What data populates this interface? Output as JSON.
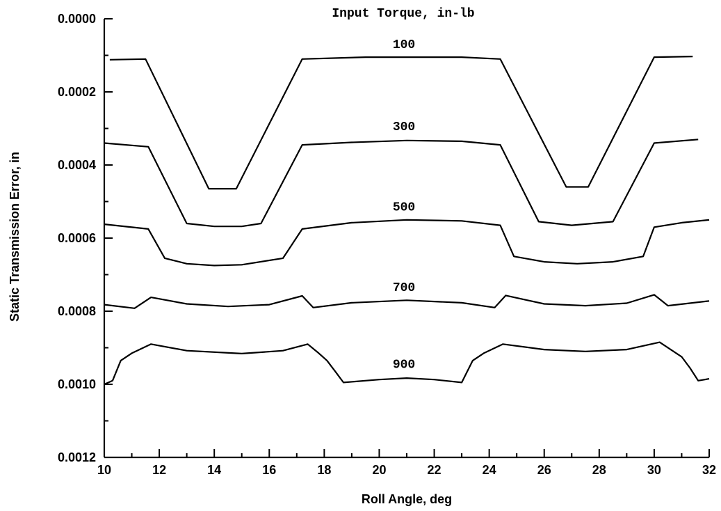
{
  "chart_data": {
    "type": "line",
    "title": "Input Torque, in-lb",
    "xlabel": "Roll Angle, deg",
    "ylabel": "Static Transmission Error, in",
    "xlim": [
      10,
      32
    ],
    "ylim": [
      0.0012,
      0.0
    ],
    "y_inverted": true,
    "x_major_ticks": [
      "10",
      "12",
      "14",
      "16",
      "18",
      "20",
      "22",
      "24",
      "26",
      "28",
      "30",
      "32"
    ],
    "y_major_ticks": [
      "0.0000",
      "0.0002",
      "0.0004",
      "0.0006",
      "0.0008",
      "0.0010",
      "0.0012"
    ],
    "grid": false,
    "series": [
      {
        "name": "100",
        "x": [
          10.2,
          11.5,
          13.8,
          14.2,
          14.8,
          17.2,
          19.5,
          21.0,
          23.0,
          24.4,
          26.8,
          27.2,
          27.6,
          30.0,
          31.4
        ],
        "y": [
          0.000112,
          0.00011,
          0.000465,
          0.000465,
          0.000465,
          0.00011,
          0.000105,
          0.000105,
          0.000105,
          0.00011,
          0.00046,
          0.00046,
          0.00046,
          0.000105,
          0.000103
        ]
      },
      {
        "name": "300",
        "x": [
          10.0,
          11.6,
          13.0,
          14.0,
          15.0,
          15.7,
          17.2,
          19.0,
          21.0,
          23.0,
          24.4,
          25.8,
          27.0,
          28.5,
          30.0,
          31.6
        ],
        "y": [
          0.00034,
          0.00035,
          0.00056,
          0.000568,
          0.000568,
          0.00056,
          0.000345,
          0.000338,
          0.000333,
          0.000335,
          0.000345,
          0.000555,
          0.000565,
          0.000555,
          0.00034,
          0.00033
        ]
      },
      {
        "name": "500",
        "x": [
          10.0,
          11.6,
          12.2,
          13.0,
          14.0,
          15.0,
          16.5,
          17.2,
          19.0,
          21.0,
          23.0,
          24.4,
          24.9,
          26.0,
          27.2,
          28.5,
          29.6,
          30.0,
          31.0,
          32.0
        ],
        "y": [
          0.000562,
          0.000575,
          0.000655,
          0.00067,
          0.000675,
          0.000673,
          0.000655,
          0.000575,
          0.000558,
          0.00055,
          0.000553,
          0.000565,
          0.00065,
          0.000665,
          0.00067,
          0.000665,
          0.00065,
          0.00057,
          0.000558,
          0.00055
        ]
      },
      {
        "name": "700",
        "x": [
          10.0,
          11.1,
          11.7,
          13.0,
          14.5,
          16.0,
          17.2,
          17.6,
          19.0,
          21.0,
          23.0,
          24.2,
          24.6,
          26.0,
          27.5,
          29.0,
          30.0,
          30.5,
          32.0
        ],
        "y": [
          0.000782,
          0.000792,
          0.000762,
          0.00078,
          0.000787,
          0.000782,
          0.000758,
          0.00079,
          0.000777,
          0.00077,
          0.000777,
          0.00079,
          0.000757,
          0.00078,
          0.000785,
          0.000778,
          0.000755,
          0.000785,
          0.000772
        ]
      },
      {
        "name": "900",
        "x": [
          10.0,
          10.3,
          10.6,
          11.0,
          11.7,
          13.0,
          15.0,
          16.5,
          17.4,
          17.8,
          18.1,
          18.4,
          18.7,
          20.0,
          21.0,
          22.0,
          23.0,
          23.4,
          23.8,
          24.5,
          26.0,
          27.5,
          29.0,
          30.2,
          30.6,
          31.0,
          31.3,
          31.6,
          32.0
        ],
        "y": [
          0.001,
          0.00099,
          0.000935,
          0.000915,
          0.00089,
          0.000908,
          0.000916,
          0.000908,
          0.00089,
          0.000915,
          0.000935,
          0.000965,
          0.000995,
          0.000987,
          0.000983,
          0.000987,
          0.000995,
          0.000935,
          0.000915,
          0.00089,
          0.000905,
          0.00091,
          0.000905,
          0.000885,
          0.000905,
          0.000925,
          0.000955,
          0.00099,
          0.000985
        ]
      }
    ],
    "series_labels": [
      {
        "text": "100",
        "x": 20.9,
        "y": 8e-05
      },
      {
        "text": "300",
        "x": 20.9,
        "y": 0.000305
      },
      {
        "text": "500",
        "x": 20.9,
        "y": 0.000525
      },
      {
        "text": "700",
        "x": 20.9,
        "y": 0.000745
      },
      {
        "text": "900",
        "x": 20.9,
        "y": 0.000955
      }
    ]
  }
}
